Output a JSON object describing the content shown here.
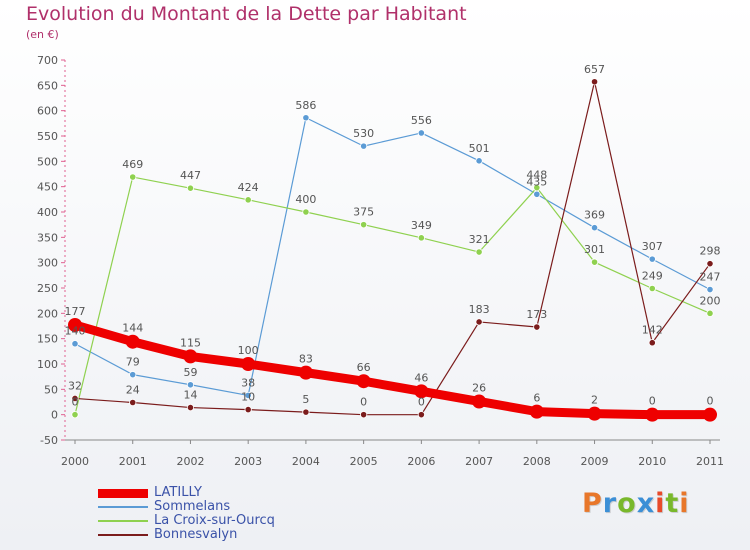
{
  "header": {
    "title": "Evolution du Montant de la Dette par Habitant",
    "unit": "(en €)"
  },
  "logo": {
    "text": "Proxiti",
    "letter_colors": [
      "#e8772a",
      "#3b8fd6",
      "#79b82b",
      "#3b8fd6",
      "#e84a2a",
      "#79b82b",
      "#e8772a"
    ]
  },
  "chart_data": {
    "type": "line",
    "title": "Evolution du Montant de la Dette par Habitant",
    "ylabel": "(en €)",
    "xlabel": "",
    "x": [
      "2000",
      "2001",
      "2002",
      "2003",
      "2004",
      "2005",
      "2006",
      "2007",
      "2008",
      "2009",
      "2010",
      "2011"
    ],
    "ylim": [
      -50,
      700
    ],
    "yticks": [
      -50,
      0,
      50,
      100,
      150,
      200,
      250,
      300,
      350,
      400,
      450,
      500,
      550,
      600,
      650,
      700
    ],
    "grid": false,
    "legend_position": "bottom-left",
    "series": [
      {
        "name": "LATILLY",
        "color": "#ee0000",
        "values": [
          177,
          144,
          115,
          100,
          83,
          66,
          46,
          26,
          6,
          2,
          0,
          0
        ]
      },
      {
        "name": "Sommelans",
        "color": "#5b9bd5",
        "values": [
          140,
          79,
          59,
          38,
          586,
          530,
          556,
          501,
          435,
          369,
          307,
          247
        ]
      },
      {
        "name": "La Croix-sur-Ourcq",
        "color": "#8fd14f",
        "values": [
          0,
          469,
          447,
          424,
          400,
          375,
          349,
          321,
          448,
          301,
          249,
          200
        ]
      },
      {
        "name": "Bonnesvalyn",
        "color": "#7b1c1c",
        "values": [
          32,
          24,
          14,
          10,
          5,
          0,
          0,
          183,
          173,
          657,
          142,
          298
        ]
      }
    ]
  }
}
